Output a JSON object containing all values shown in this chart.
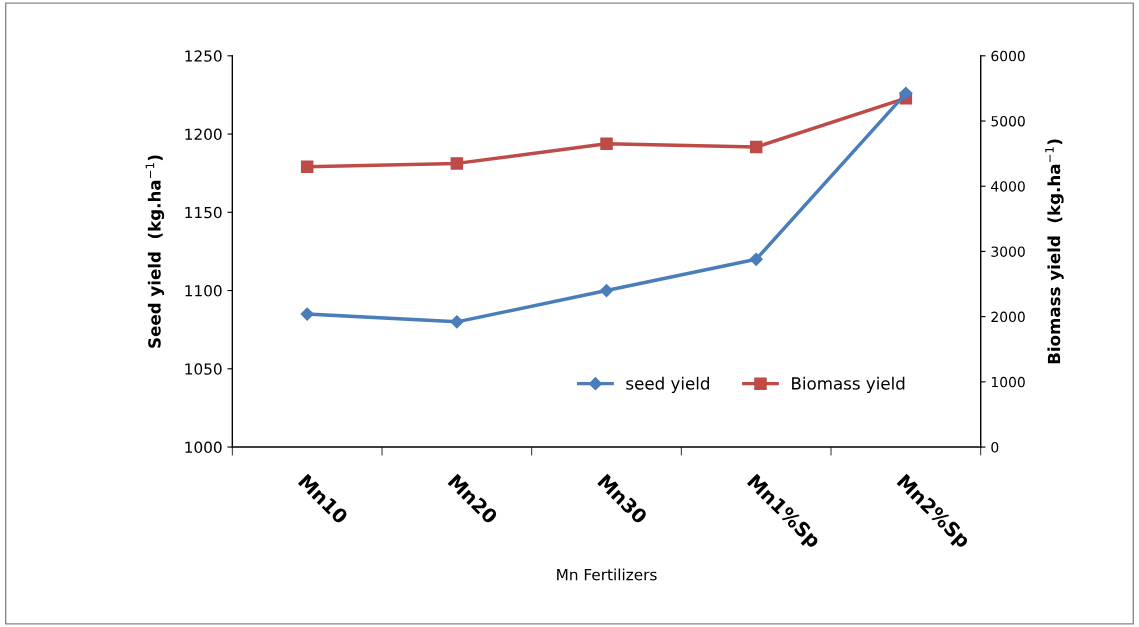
{
  "chart_data": {
    "type": "line",
    "xlabel": "Mn Fertilizers",
    "ylabel": "Seed yield  (kg.ha$^{−1}$)",
    "y2label": "Biomass yield  (kg.ha$^{−1}$)",
    "categories": [
      "Mn10",
      "Mn20",
      "Mn30",
      "Mn1%Sp",
      "Mn2%Sp"
    ],
    "series": [
      {
        "name": "seed yield",
        "color": "#4a7ebb",
        "values": [
          1085,
          1080,
          1100,
          1120,
          1226
        ],
        "marker": "diamond"
      },
      {
        "name": "Biomass yield",
        "color": "#be4b48",
        "values": [
          4300,
          4350,
          4650,
          4600,
          5350
        ],
        "marker": "square",
        "axis": "y2"
      }
    ],
    "ylim": [
      1000,
      1250
    ],
    "yticks": [
      1000,
      1050,
      1100,
      1150,
      1200,
      1250
    ],
    "y2lim": [
      0,
      6000
    ],
    "y2ticks": [
      0,
      1000,
      2000,
      3000,
      4000,
      5000,
      6000
    ],
    "legend": "bottom right",
    "grid": false
  }
}
